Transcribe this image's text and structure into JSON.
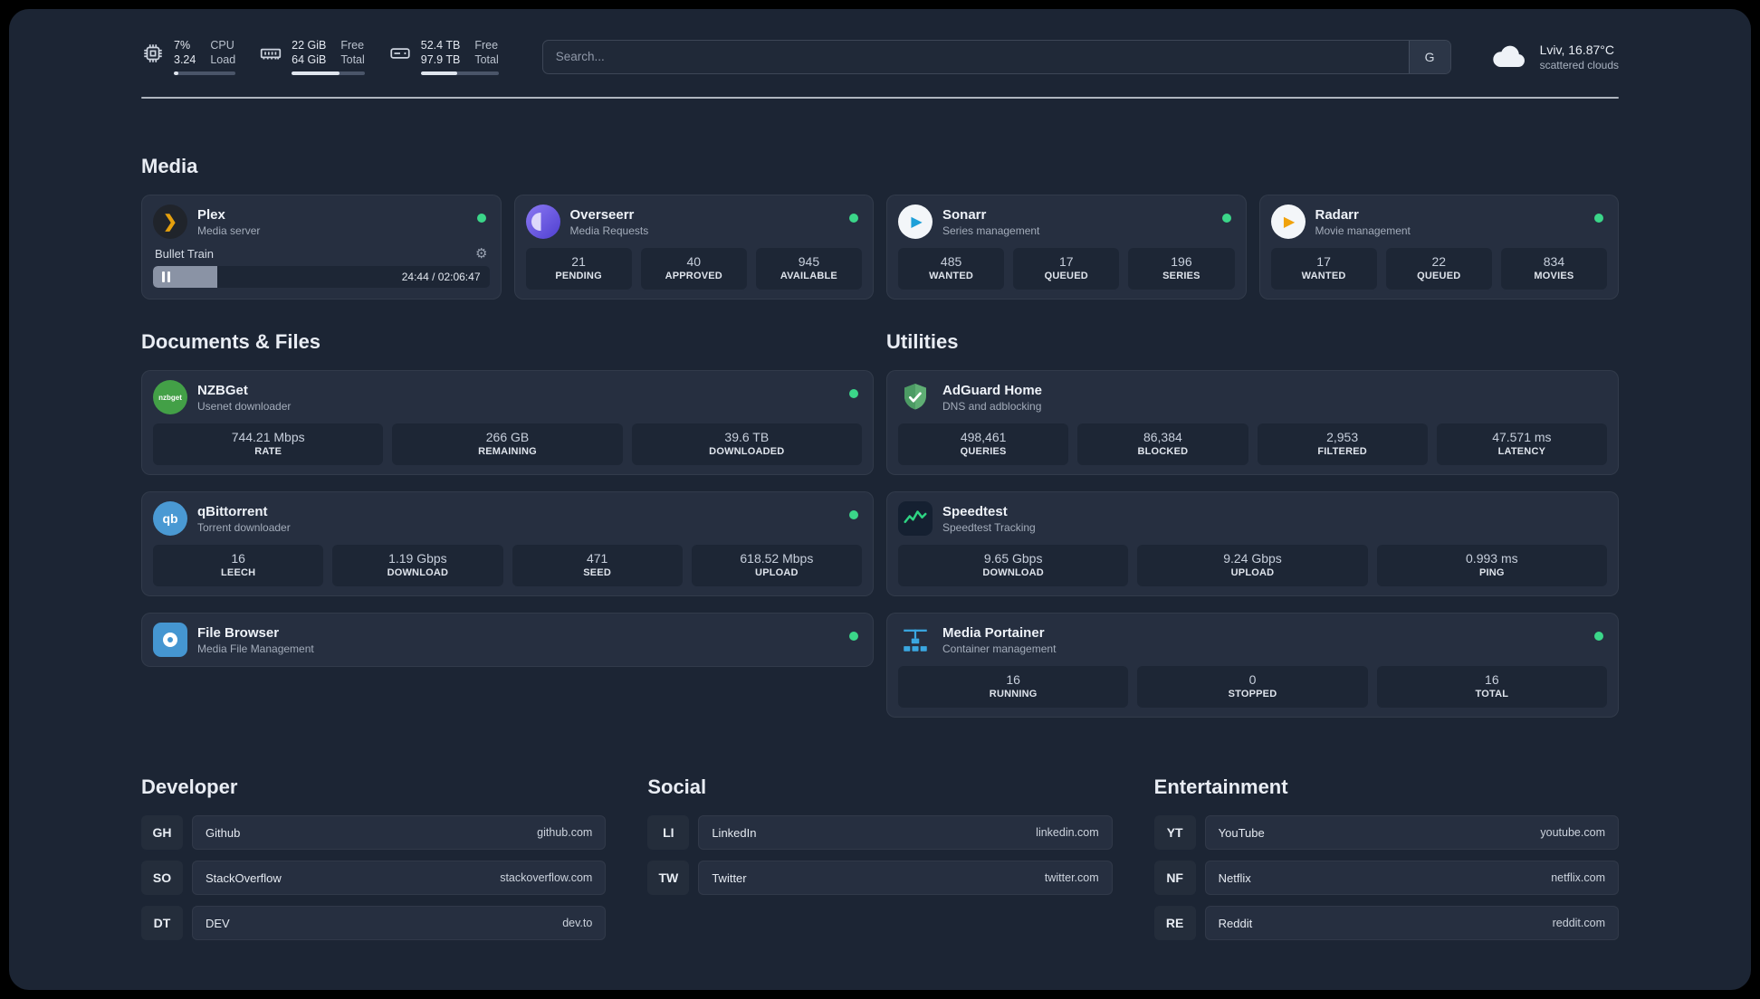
{
  "topbar": {
    "cpu": {
      "v1": "7%",
      "v2": "3.24",
      "l1": "CPU",
      "l2": "Load",
      "progress": 7
    },
    "memory": {
      "v1": "22 GiB",
      "v2": "64 GiB",
      "l1": "Free",
      "l2": "Total",
      "progress": 66
    },
    "disk": {
      "v1": "52.4 TB",
      "v2": "97.9 TB",
      "l1": "Free",
      "l2": "Total",
      "progress": 47
    },
    "search": {
      "placeholder": "Search...",
      "button_label": "G"
    },
    "weather": {
      "location": "Lviv, 16.87°C",
      "condition": "scattered clouds"
    }
  },
  "icons": {
    "gear": "⚙",
    "play": "▶",
    "plex_chevron": "❯",
    "nzbget_text": "nzbget",
    "qb_text": "qb"
  },
  "sections": {
    "media": {
      "title": "Media",
      "plex": {
        "name": "Plex",
        "subtitle": "Media server",
        "player": {
          "track": "Bullet Train",
          "time": "24:44 / 02:06:47",
          "progress": 19
        }
      },
      "overseerr": {
        "name": "Overseerr",
        "subtitle": "Media Requests",
        "stats": [
          {
            "value": "21",
            "label": "PENDING"
          },
          {
            "value": "40",
            "label": "APPROVED"
          },
          {
            "value": "945",
            "label": "AVAILABLE"
          }
        ]
      },
      "sonarr": {
        "name": "Sonarr",
        "subtitle": "Series management",
        "stats": [
          {
            "value": "485",
            "label": "WANTED"
          },
          {
            "value": "17",
            "label": "QUEUED"
          },
          {
            "value": "196",
            "label": "SERIES"
          }
        ]
      },
      "radarr": {
        "name": "Radarr",
        "subtitle": "Movie management",
        "stats": [
          {
            "value": "17",
            "label": "WANTED"
          },
          {
            "value": "22",
            "label": "QUEUED"
          },
          {
            "value": "834",
            "label": "MOVIES"
          }
        ]
      }
    },
    "documents": {
      "title": "Documents & Files",
      "nzbget": {
        "name": "NZBGet",
        "subtitle": "Usenet downloader",
        "stats": [
          {
            "value": "744.21 Mbps",
            "label": "RATE"
          },
          {
            "value": "266 GB",
            "label": "REMAINING"
          },
          {
            "value": "39.6 TB",
            "label": "DOWNLOADED"
          }
        ]
      },
      "qbittorrent": {
        "name": "qBittorrent",
        "subtitle": "Torrent downloader",
        "stats": [
          {
            "value": "16",
            "label": "LEECH"
          },
          {
            "value": "1.19 Gbps",
            "label": "DOWNLOAD"
          },
          {
            "value": "471",
            "label": "SEED"
          },
          {
            "value": "618.52 Mbps",
            "label": "UPLOAD"
          }
        ]
      },
      "filebrowser": {
        "name": "File Browser",
        "subtitle": "Media File Management"
      }
    },
    "utilities": {
      "title": "Utilities",
      "adguard": {
        "name": "AdGuard Home",
        "subtitle": "DNS and adblocking",
        "stats": [
          {
            "value": "498,461",
            "label": "QUERIES"
          },
          {
            "value": "86,384",
            "label": "BLOCKED"
          },
          {
            "value": "2,953",
            "label": "FILTERED"
          },
          {
            "value": "47.571 ms",
            "label": "LATENCY"
          }
        ]
      },
      "speedtest": {
        "name": "Speedtest",
        "subtitle": "Speedtest Tracking",
        "stats": [
          {
            "value": "9.65 Gbps",
            "label": "DOWNLOAD"
          },
          {
            "value": "9.24 Gbps",
            "label": "UPLOAD"
          },
          {
            "value": "0.993 ms",
            "label": "PING"
          }
        ]
      },
      "portainer": {
        "name": "Media Portainer",
        "subtitle": "Container management",
        "stats": [
          {
            "value": "16",
            "label": "RUNNING"
          },
          {
            "value": "0",
            "label": "STOPPED"
          },
          {
            "value": "16",
            "label": "TOTAL"
          }
        ]
      }
    }
  },
  "bookmarks": {
    "developer": {
      "title": "Developer",
      "items": [
        {
          "abbr": "GH",
          "label": "Github",
          "url": "github.com"
        },
        {
          "abbr": "SO",
          "label": "StackOverflow",
          "url": "stackoverflow.com"
        },
        {
          "abbr": "DT",
          "label": "DEV",
          "url": "dev.to"
        }
      ]
    },
    "social": {
      "title": "Social",
      "items": [
        {
          "abbr": "LI",
          "label": "LinkedIn",
          "url": "linkedin.com"
        },
        {
          "abbr": "TW",
          "label": "Twitter",
          "url": "twitter.com"
        }
      ]
    },
    "entertainment": {
      "title": "Entertainment",
      "items": [
        {
          "abbr": "YT",
          "label": "YouTube",
          "url": "youtube.com"
        },
        {
          "abbr": "NF",
          "label": "Netflix",
          "url": "netflix.com"
        },
        {
          "abbr": "RE",
          "label": "Reddit",
          "url": "reddit.com"
        }
      ]
    }
  },
  "colors": {
    "status_online": "#3bd689",
    "accent_plex": "#e5a00d"
  }
}
